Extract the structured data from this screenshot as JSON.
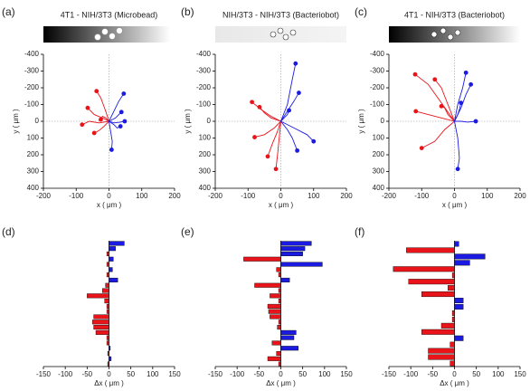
{
  "chart_data": [
    {
      "type": "line",
      "panel_label": "(a)",
      "title": "4T1 - NIH/3T3 (Microbead)",
      "xlabel": "x ( μm )",
      "ylabel": "y ( μm )",
      "xlim": [
        -200,
        200
      ],
      "xticks": [
        -200,
        -100,
        0,
        100,
        200
      ],
      "ylim": [
        400,
        -400
      ],
      "yticks": [
        -400,
        -300,
        -200,
        -100,
        0,
        100,
        200,
        300,
        400
      ],
      "series": [
        {
          "color": "#e8141a",
          "x": [
            0,
            -10,
            -25,
            -38
          ],
          "values": [
            0,
            -60,
            -140,
            -180
          ]
        },
        {
          "color": "#e8141a",
          "x": [
            0,
            -20,
            -45,
            -65
          ],
          "values": [
            0,
            -20,
            -40,
            -80
          ]
        },
        {
          "color": "#e8141a",
          "x": [
            0,
            -30,
            -60,
            -82
          ],
          "values": [
            0,
            10,
            0,
            20
          ]
        },
        {
          "color": "#e8141a",
          "x": [
            0,
            -15,
            -30,
            -45
          ],
          "values": [
            0,
            30,
            55,
            70
          ]
        },
        {
          "color": "#e8141a",
          "x": [
            0,
            -10,
            -20,
            -25
          ],
          "values": [
            0,
            -20,
            -30,
            -10
          ]
        },
        {
          "color": "#1a1ae0",
          "x": [
            0,
            15,
            30,
            45
          ],
          "values": [
            0,
            -60,
            -120,
            -165
          ]
        },
        {
          "color": "#1a1ae0",
          "x": [
            0,
            20,
            30,
            38
          ],
          "values": [
            0,
            -20,
            -40,
            -55
          ]
        },
        {
          "color": "#1a1ae0",
          "x": [
            0,
            15,
            35,
            48
          ],
          "values": [
            0,
            10,
            5,
            0
          ]
        },
        {
          "color": "#1a1ae0",
          "x": [
            0,
            5,
            10,
            8
          ],
          "values": [
            0,
            60,
            120,
            170
          ]
        },
        {
          "color": "#1a1ae0",
          "x": [
            0,
            15,
            25,
            35
          ],
          "values": [
            0,
            20,
            40,
            30
          ]
        }
      ]
    },
    {
      "type": "line",
      "panel_label": "(b)",
      "title": "NIH/3T3 - NIH/3T3 (Bacteriobot)",
      "xlabel": "x ( μm )",
      "ylabel": "y ( μm )",
      "xlim": [
        -200,
        200
      ],
      "xticks": [
        -200,
        -100,
        0,
        100,
        200
      ],
      "ylim": [
        400,
        -400
      ],
      "yticks": [
        -400,
        -300,
        -200,
        -100,
        0,
        100,
        200,
        300,
        400
      ],
      "series": [
        {
          "color": "#e8141a",
          "x": [
            0,
            -30,
            -60,
            -88
          ],
          "values": [
            0,
            -30,
            -70,
            -115
          ]
        },
        {
          "color": "#e8141a",
          "x": [
            0,
            -20,
            -50,
            -80
          ],
          "values": [
            0,
            40,
            80,
            95
          ]
        },
        {
          "color": "#e8141a",
          "x": [
            0,
            -10,
            -25,
            -40
          ],
          "values": [
            0,
            60,
            130,
            210
          ]
        },
        {
          "color": "#e8141a",
          "x": [
            0,
            -5,
            -10,
            -15
          ],
          "values": [
            0,
            100,
            200,
            285
          ]
        },
        {
          "color": "#e8141a",
          "x": [
            0,
            -30,
            -50,
            -65
          ],
          "values": [
            0,
            -20,
            -50,
            -85
          ]
        },
        {
          "color": "#1a1ae0",
          "x": [
            0,
            20,
            35,
            45
          ],
          "values": [
            0,
            -100,
            -250,
            -345
          ]
        },
        {
          "color": "#1a1ae0",
          "x": [
            0,
            20,
            40,
            55
          ],
          "values": [
            0,
            -60,
            -120,
            -170
          ]
        },
        {
          "color": "#1a1ae0",
          "x": [
            0,
            40,
            80,
            100
          ],
          "values": [
            0,
            40,
            80,
            120
          ]
        },
        {
          "color": "#1a1ae0",
          "x": [
            0,
            20,
            35,
            50
          ],
          "values": [
            0,
            50,
            100,
            175
          ]
        },
        {
          "color": "#1a1ae0",
          "x": [
            0,
            10,
            20,
            25
          ],
          "values": [
            0,
            -20,
            -40,
            -65
          ]
        }
      ]
    },
    {
      "type": "line",
      "panel_label": "(c)",
      "title": "4T1 - NIH/3T3 (Bacteriobot)",
      "xlabel": "x ( μm )",
      "ylabel": "y ( μm )",
      "xlim": [
        -200,
        200
      ],
      "xticks": [
        -200,
        -100,
        0,
        100,
        200
      ],
      "ylim": [
        400,
        -400
      ],
      "yticks": [
        -400,
        -300,
        -200,
        -100,
        0,
        100,
        200,
        300,
        400
      ],
      "series": [
        {
          "color": "#e8141a",
          "x": [
            0,
            -40,
            -80,
            -120
          ],
          "values": [
            0,
            -110,
            -220,
            -280
          ]
        },
        {
          "color": "#e8141a",
          "x": [
            0,
            -40,
            -80,
            -118
          ],
          "values": [
            0,
            -20,
            -40,
            -60
          ]
        },
        {
          "color": "#e8141a",
          "x": [
            0,
            -30,
            -60,
            -100
          ],
          "values": [
            0,
            50,
            120,
            160
          ]
        },
        {
          "color": "#e8141a",
          "x": [
            0,
            -20,
            -40,
            -60
          ],
          "values": [
            0,
            -100,
            -200,
            -250
          ]
        },
        {
          "color": "#e8141a",
          "x": [
            0,
            -20,
            -30,
            -40
          ],
          "values": [
            0,
            -40,
            -80,
            -90
          ]
        },
        {
          "color": "#1a1ae0",
          "x": [
            0,
            10,
            25,
            35
          ],
          "values": [
            0,
            -100,
            -200,
            -290
          ]
        },
        {
          "color": "#1a1ae0",
          "x": [
            0,
            20,
            35,
            50
          ],
          "values": [
            0,
            -80,
            -160,
            -220
          ]
        },
        {
          "color": "#1a1ae0",
          "x": [
            0,
            20,
            40,
            65
          ],
          "values": [
            0,
            0,
            5,
            0
          ]
        },
        {
          "color": "#1a1ae0",
          "x": [
            0,
            10,
            15,
            20
          ],
          "values": [
            0,
            -40,
            -70,
            -110
          ]
        },
        {
          "color": "#1a1ae0",
          "x": [
            0,
            10,
            15,
            10
          ],
          "values": [
            0,
            100,
            220,
            285
          ]
        }
      ]
    },
    {
      "type": "bar",
      "panel_label": "(d)",
      "xlabel": "Δx ( μm )",
      "color_positive": "#1a1ae0",
      "color_negative": "#e8141a",
      "xlim": [
        -150,
        150
      ],
      "xticks": [
        -150,
        -100,
        -50,
        0,
        50,
        100,
        150
      ],
      "categories": [
        null,
        null,
        null,
        null,
        null,
        null,
        null,
        null,
        null,
        null,
        null,
        null,
        null,
        null,
        null,
        null,
        null,
        null,
        null,
        null,
        null,
        null,
        null,
        null
      ],
      "values": [
        35,
        15,
        -5,
        10,
        -5,
        8,
        -5,
        20,
        -8,
        -15,
        -50,
        -10,
        -5,
        -5,
        -35,
        -38,
        -35,
        -30,
        -5,
        -5,
        3,
        -3,
        5,
        -3
      ]
    },
    {
      "type": "bar",
      "panel_label": "(e)",
      "xlabel": "Δx ( μm )",
      "color_positive": "#1a1ae0",
      "color_negative": "#e8141a",
      "xlim": [
        -150,
        150
      ],
      "xticks": [
        -150,
        -100,
        -50,
        0,
        50,
        100,
        150
      ],
      "categories": [
        null,
        null,
        null,
        null,
        null,
        null,
        null,
        null,
        null,
        null,
        null,
        null,
        null,
        null,
        null,
        null,
        null,
        null,
        null,
        null,
        null,
        null,
        null,
        null
      ],
      "values": [
        70,
        55,
        50,
        -85,
        95,
        -10,
        -5,
        20,
        -60,
        -5,
        -25,
        -5,
        -30,
        -28,
        -25,
        -5,
        -8,
        35,
        30,
        -20,
        40,
        -10,
        -30,
        -5
      ]
    },
    {
      "type": "bar",
      "panel_label": "(f)",
      "xlabel": "Δx ( μm )",
      "color_positive": "#1a1ae0",
      "color_negative": "#e8141a",
      "xlim": [
        -150,
        150
      ],
      "xticks": [
        -150,
        -100,
        -50,
        0,
        50,
        100,
        150
      ],
      "categories": [
        null,
        null,
        null,
        null,
        null,
        null,
        null,
        null,
        null,
        null,
        null,
        null,
        null,
        null,
        null,
        null,
        null,
        null,
        null,
        null
      ],
      "values": [
        10,
        -110,
        70,
        35,
        -140,
        -5,
        -105,
        -15,
        -75,
        20,
        20,
        -5,
        -5,
        -30,
        -75,
        20,
        -10,
        -60,
        -60,
        -10
      ]
    }
  ]
}
